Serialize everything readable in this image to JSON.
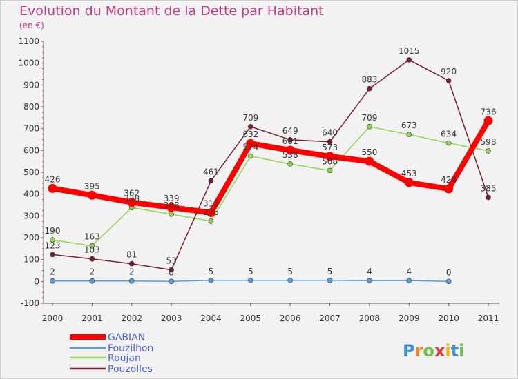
{
  "chart_data": {
    "type": "line",
    "title": "Evolution du Montant de la Dette par Habitant",
    "subtitle": "(en €)",
    "x": [
      "2000",
      "2001",
      "2002",
      "2003",
      "2004",
      "2005",
      "2006",
      "2007",
      "2008",
      "2009",
      "2010",
      "2011"
    ],
    "ylim": [
      -100,
      1100
    ],
    "yticks": [
      -100,
      0,
      100,
      200,
      300,
      400,
      500,
      600,
      700,
      800,
      900,
      1000,
      1100
    ],
    "grid": false,
    "legend_position": "bottom-left",
    "series": [
      {
        "name": "GABIAN",
        "color": "#ff0000",
        "values": [
          426,
          395,
          362,
          339,
          315,
          632,
          601,
          573,
          550,
          453,
          424,
          736
        ],
        "labels": [
          "426",
          "395",
          "362",
          "339",
          "315",
          "632",
          "601",
          "573",
          "550",
          "453",
          "424",
          "736"
        ]
      },
      {
        "name": "Fouzilhon",
        "color": "#5b9bd5",
        "values": [
          2,
          2,
          2,
          0,
          5,
          5,
          5,
          5,
          4,
          4,
          0,
          null
        ],
        "labels": [
          "2",
          "2",
          "2",
          "0",
          "5",
          "5",
          "5",
          "5",
          "4",
          "4",
          "0",
          ""
        ]
      },
      {
        "name": "Roujan",
        "color": "#8fd650",
        "values": [
          190,
          163,
          338,
          308,
          276,
          574,
          538,
          508,
          709,
          673,
          634,
          598
        ],
        "labels": [
          "190",
          "163",
          "338",
          "308",
          "276",
          "574",
          "538",
          "508",
          "709",
          "673",
          "634",
          "598"
        ]
      },
      {
        "name": "Pouzolles",
        "color": "#7a1e2e",
        "values": [
          123,
          103,
          81,
          53,
          461,
          709,
          649,
          640,
          883,
          1015,
          920,
          385
        ],
        "labels": [
          "123",
          "103",
          "81",
          "53",
          "461",
          "709",
          "649",
          "640",
          "883",
          "1015",
          "920",
          "385"
        ]
      }
    ]
  },
  "logo": {
    "text": "Proxiti"
  }
}
